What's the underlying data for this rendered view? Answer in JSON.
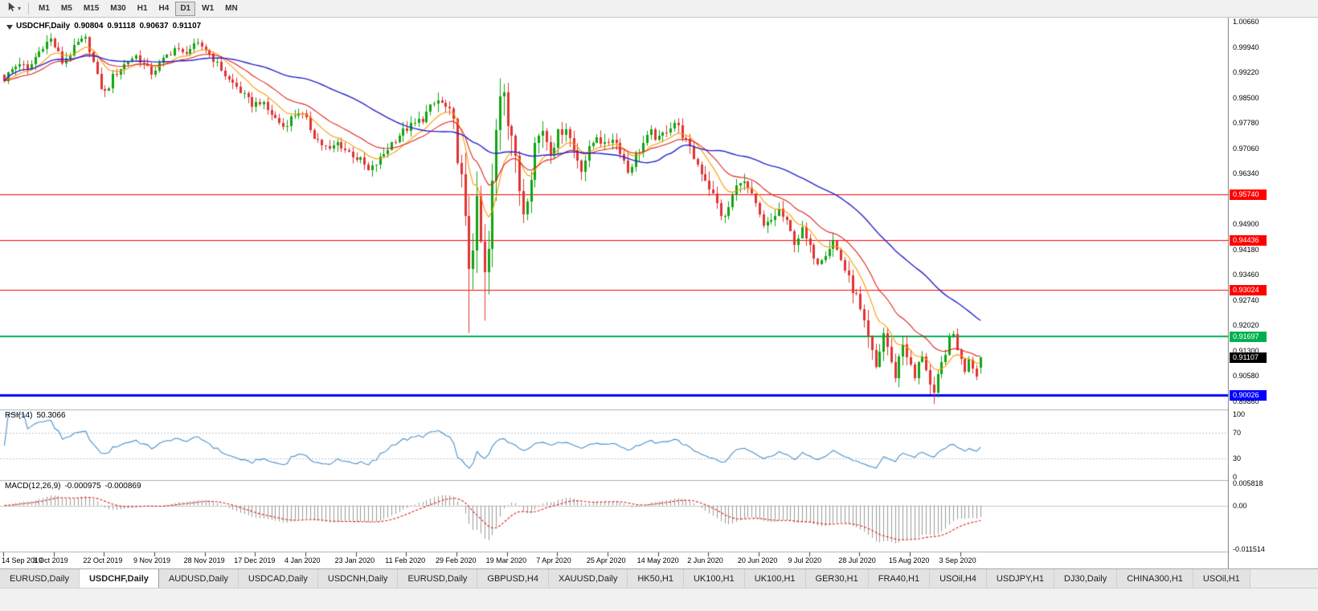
{
  "toolbar": {
    "timeframes": [
      {
        "label": "M1",
        "active": false
      },
      {
        "label": "M5",
        "active": false
      },
      {
        "label": "M15",
        "active": false
      },
      {
        "label": "M30",
        "active": false
      },
      {
        "label": "H1",
        "active": false
      },
      {
        "label": "H4",
        "active": false
      },
      {
        "label": "D1",
        "active": true
      },
      {
        "label": "W1",
        "active": false
      },
      {
        "label": "MN",
        "active": false
      }
    ]
  },
  "chart": {
    "symbol_period": "USDCHF,Daily",
    "open": "0.90804",
    "high": "0.91118",
    "low": "0.90637",
    "close": "0.91107"
  },
  "indicators": {
    "rsi": {
      "name": "RSI(14)",
      "value": "50.3066"
    },
    "macd": {
      "name": "MACD(12,26,9)",
      "value_main": "-0.000975",
      "value_signal": "-0.000869"
    }
  },
  "colors": {
    "candle_up": "#11a411",
    "candle_down": "#e03333",
    "ma_fast": "#ff9900",
    "ma_mid": "#e02020",
    "ma_slow": "#2424cc",
    "rsi_line": "#4a90ca",
    "rsi_level_dash": "#c4c4c4",
    "macd_hist": "#9a9a9a",
    "macd_signal": "#e02020",
    "level_red": "#ff0000",
    "level_green": "#00b050",
    "level_blue": "#0000ff",
    "current_price_tag": "#000000",
    "axis_text": "#000000"
  },
  "chart_data": {
    "type": "candlestick",
    "title": "USDCHF,Daily",
    "symbol": "USDCHF",
    "timeframe": "Daily",
    "bars": 253,
    "x_label_bar_step": 13,
    "x_labels": [
      "14 Sep 2019",
      "3 Oct 2019",
      "22 Oct 2019",
      "9 Nov 2019",
      "28 Nov 2019",
      "17 Dec 2019",
      "4 Jan 2020",
      "23 Jan 2020",
      "11 Feb 2020",
      "29 Feb 2020",
      "19 Mar 2020",
      "7 Apr 2020",
      "25 Apr 2020",
      "14 May 2020",
      "2 Jun 2020",
      "20 Jun 2020",
      "9 Jul 2020",
      "28 Jul 2020",
      "15 Aug 2020",
      "3 Sep 2020"
    ],
    "price_axis": {
      "top": 1.0078,
      "bottom": 0.8962,
      "tick_step": 0.0072,
      "ticks": [
        "1.00660",
        "0.99940",
        "0.99220",
        "0.98500",
        "0.97780",
        "0.97060",
        "0.96340",
        "0.95620",
        "0.94900",
        "0.94180",
        "0.93460",
        "0.92740",
        "0.92020",
        "0.91300",
        "0.90580",
        "0.89860"
      ]
    },
    "last_bar_ohlc": [
      0.90804,
      0.91118,
      0.90637,
      0.91107
    ],
    "close_anchors": [
      [
        0,
        0.9905
      ],
      [
        2,
        0.993
      ],
      [
        4,
        0.995
      ],
      [
        6,
        0.9925
      ],
      [
        8,
        0.9965
      ],
      [
        10,
        1.0
      ],
      [
        12,
        1.0015
      ],
      [
        14,
        0.9975
      ],
      [
        15,
        0.995
      ],
      [
        17,
        0.9975
      ],
      [
        19,
        1.0005
      ],
      [
        21,
        1.0015
      ],
      [
        22,
        0.999
      ],
      [
        23,
        0.995
      ],
      [
        24,
        0.991
      ],
      [
        25,
        0.988
      ],
      [
        26,
        0.9865
      ],
      [
        27,
        0.9885
      ],
      [
        28,
        0.991
      ],
      [
        30,
        0.9935
      ],
      [
        32,
        0.9955
      ],
      [
        34,
        0.997
      ],
      [
        36,
        0.9945
      ],
      [
        38,
        0.992
      ],
      [
        40,
        0.9945
      ],
      [
        42,
        0.997
      ],
      [
        44,
        0.999
      ],
      [
        46,
        0.9975
      ],
      [
        48,
        0.999
      ],
      [
        50,
        1.0
      ],
      [
        52,
        0.999
      ],
      [
        54,
        0.996
      ],
      [
        56,
        0.993
      ],
      [
        58,
        0.99
      ],
      [
        60,
        0.988
      ],
      [
        62,
        0.9855
      ],
      [
        64,
        0.983
      ],
      [
        66,
        0.984
      ],
      [
        68,
        0.9815
      ],
      [
        70,
        0.979
      ],
      [
        72,
        0.9768
      ],
      [
        74,
        0.9792
      ],
      [
        76,
        0.9812
      ],
      [
        78,
        0.9785
      ],
      [
        80,
        0.9742
      ],
      [
        82,
        0.9716
      ],
      [
        84,
        0.97
      ],
      [
        86,
        0.9722
      ],
      [
        88,
        0.9702
      ],
      [
        90,
        0.9686
      ],
      [
        92,
        0.9672
      ],
      [
        94,
        0.964
      ],
      [
        96,
        0.9662
      ],
      [
        98,
        0.969
      ],
      [
        100,
        0.9722
      ],
      [
        102,
        0.9746
      ],
      [
        104,
        0.9762
      ],
      [
        106,
        0.9776
      ],
      [
        108,
        0.9792
      ],
      [
        110,
        0.982
      ],
      [
        112,
        0.9842
      ],
      [
        114,
        0.982
      ],
      [
        115,
        0.98
      ],
      [
        116,
        0.977
      ],
      [
        117,
        0.969
      ],
      [
        118,
        0.961
      ],
      [
        119,
        0.948
      ],
      [
        120,
        0.938
      ],
      [
        121,
        0.945
      ],
      [
        122,
        0.952
      ],
      [
        123,
        0.943
      ],
      [
        124,
        0.933
      ],
      [
        125,
        0.941
      ],
      [
        126,
        0.959
      ],
      [
        127,
        0.975
      ],
      [
        128,
        0.987
      ],
      [
        129,
        0.989
      ],
      [
        130,
        0.98
      ],
      [
        131,
        0.975
      ],
      [
        132,
        0.966
      ],
      [
        133,
        0.959
      ],
      [
        134,
        0.953
      ],
      [
        135,
        0.958
      ],
      [
        136,
        0.964
      ],
      [
        137,
        0.972
      ],
      [
        139,
        0.976
      ],
      [
        141,
        0.97
      ],
      [
        143,
        0.9745
      ],
      [
        145,
        0.977
      ],
      [
        147,
        0.97
      ],
      [
        149,
        0.965
      ],
      [
        151,
        0.97
      ],
      [
        153,
        0.9745
      ],
      [
        155,
        0.971
      ],
      [
        157,
        0.974
      ],
      [
        159,
        0.97
      ],
      [
        161,
        0.964
      ],
      [
        163,
        0.9685
      ],
      [
        165,
        0.972
      ],
      [
        167,
        0.975
      ],
      [
        169,
        0.973
      ],
      [
        171,
        0.976
      ],
      [
        173,
        0.978
      ],
      [
        175,
        0.9745
      ],
      [
        177,
        0.97
      ],
      [
        179,
        0.966
      ],
      [
        181,
        0.962
      ],
      [
        183,
        0.957
      ],
      [
        185,
        0.952
      ],
      [
        186,
        0.9505
      ],
      [
        188,
        0.957
      ],
      [
        190,
        0.962
      ],
      [
        192,
        0.959
      ],
      [
        194,
        0.954
      ],
      [
        196,
        0.948
      ],
      [
        198,
        0.95
      ],
      [
        200,
        0.953
      ],
      [
        202,
        0.949
      ],
      [
        204,
        0.944
      ],
      [
        206,
        0.947
      ],
      [
        208,
        0.942
      ],
      [
        210,
        0.9385
      ],
      [
        212,
        0.941
      ],
      [
        214,
        0.944
      ],
      [
        216,
        0.939
      ],
      [
        218,
        0.933
      ],
      [
        220,
        0.928
      ],
      [
        222,
        0.92
      ],
      [
        223,
        0.916
      ],
      [
        224,
        0.912
      ],
      [
        225,
        0.908
      ],
      [
        226,
        0.913
      ],
      [
        227,
        0.918
      ],
      [
        228,
        0.914
      ],
      [
        229,
        0.909
      ],
      [
        230,
        0.906
      ],
      [
        231,
        0.911
      ],
      [
        232,
        0.915
      ],
      [
        233,
        0.912
      ],
      [
        234,
        0.908
      ],
      [
        235,
        0.905
      ],
      [
        236,
        0.909
      ],
      [
        237,
        0.912
      ],
      [
        238,
        0.908
      ],
      [
        239,
        0.903
      ],
      [
        240,
        0.8995
      ],
      [
        241,
        0.905
      ],
      [
        242,
        0.909
      ],
      [
        243,
        0.913
      ],
      [
        244,
        0.9155
      ],
      [
        245,
        0.9175
      ],
      [
        246,
        0.914
      ],
      [
        247,
        0.91
      ],
      [
        248,
        0.9075
      ],
      [
        249,
        0.911
      ],
      [
        250,
        0.9085
      ],
      [
        251,
        0.9065
      ],
      [
        252,
        0.9111
      ]
    ],
    "vol_anchors": [
      [
        0,
        0.0038
      ],
      [
        30,
        0.0034
      ],
      [
        60,
        0.0032
      ],
      [
        90,
        0.0034
      ],
      [
        110,
        0.004
      ],
      [
        114,
        0.0055
      ],
      [
        117,
        0.009
      ],
      [
        119,
        0.014
      ],
      [
        121,
        0.017
      ],
      [
        124,
        0.016
      ],
      [
        127,
        0.015
      ],
      [
        130,
        0.012
      ],
      [
        133,
        0.0095
      ],
      [
        136,
        0.008
      ],
      [
        140,
        0.006
      ],
      [
        150,
        0.0048
      ],
      [
        170,
        0.0042
      ],
      [
        183,
        0.005
      ],
      [
        190,
        0.0045
      ],
      [
        210,
        0.0042
      ],
      [
        218,
        0.005
      ],
      [
        223,
        0.006
      ],
      [
        228,
        0.0048
      ],
      [
        240,
        0.0052
      ],
      [
        246,
        0.0042
      ],
      [
        252,
        0.0035
      ]
    ],
    "spikes": [
      {
        "bar": 12,
        "high": 1.0027
      },
      {
        "bar": 21,
        "high": 1.0025
      },
      {
        "bar": 120,
        "low": 0.918
      },
      {
        "bar": 124,
        "low": 0.9215
      },
      {
        "bar": 128,
        "high": 0.9905
      },
      {
        "bar": 240,
        "low": 0.8978
      },
      {
        "bar": 245,
        "high": 0.9186
      }
    ],
    "moving_averages": [
      {
        "period": 10,
        "type": "ema",
        "color_key": "ma_fast"
      },
      {
        "period": 21,
        "type": "ema",
        "color_key": "ma_mid"
      },
      {
        "period": 50,
        "type": "sma",
        "color_key": "ma_slow"
      }
    ],
    "h_lines": [
      {
        "price": 0.9574,
        "label": "0.95740",
        "color": "#ff0000",
        "width": 1
      },
      {
        "price": 0.94436,
        "label": "0.94436",
        "color": "#ff0000",
        "width": 1
      },
      {
        "price": 0.93024,
        "label": "0.93024",
        "color": "#ff0000",
        "width": 1
      },
      {
        "price": 0.91697,
        "label": "0.91697",
        "color": "#00b050",
        "width": 2
      },
      {
        "price": 0.90026,
        "label": "0.90026",
        "color": "#0000ff",
        "width": 3
      }
    ],
    "current_price": {
      "value": 0.91107,
      "label": "0.91107"
    },
    "rsi": {
      "period": 14,
      "current": 50.3066,
      "levels": [
        70,
        30
      ],
      "axis_labels": [
        "100",
        "70",
        "30",
        "0"
      ]
    },
    "macd": {
      "fast": 12,
      "slow": 26,
      "signal": 9,
      "current_main": -0.000975,
      "current_signal": -0.000869,
      "axis_max": 0.005818,
      "axis_min": -0.011514,
      "axis_labels": [
        "0.005818",
        "0.00",
        "-0.011514"
      ]
    }
  },
  "tabs": [
    {
      "label": "EURUSD,Daily",
      "active": false
    },
    {
      "label": "USDCHF,Daily",
      "active": true
    },
    {
      "label": "AUDUSD,Daily",
      "active": false
    },
    {
      "label": "USDCAD,Daily",
      "active": false
    },
    {
      "label": "USDCNH,Daily",
      "active": false
    },
    {
      "label": "EURUSD,Daily",
      "active": false
    },
    {
      "label": "GBPUSD,H4",
      "active": false
    },
    {
      "label": "XAUUSD,Daily",
      "active": false
    },
    {
      "label": "HK50,H1",
      "active": false
    },
    {
      "label": "UK100,H1",
      "active": false
    },
    {
      "label": "UK100,H1",
      "active": false
    },
    {
      "label": "GER30,H1",
      "active": false
    },
    {
      "label": "FRA40,H1",
      "active": false
    },
    {
      "label": "USOil,H4",
      "active": false
    },
    {
      "label": "USDJPY,H1",
      "active": false
    },
    {
      "label": "DJ30,Daily",
      "active": false
    },
    {
      "label": "CHINA300,H1",
      "active": false
    },
    {
      "label": "USOil,H1",
      "active": false
    }
  ]
}
